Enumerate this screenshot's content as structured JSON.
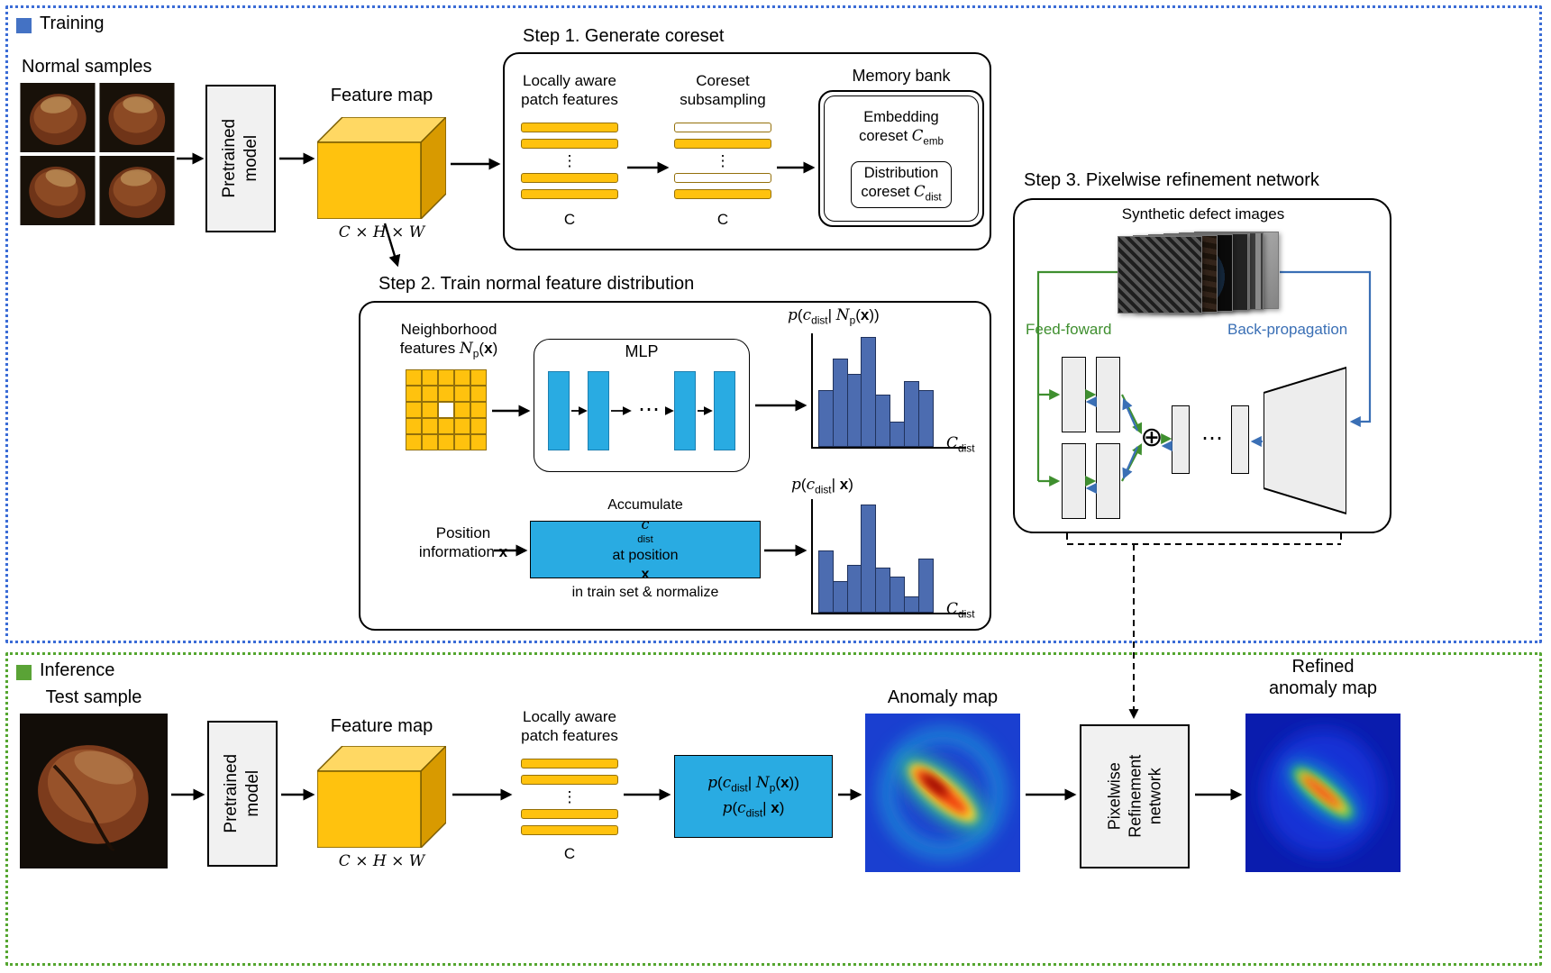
{
  "palette": {
    "training_border": "#3b6cd6",
    "inference_border": "#55a630",
    "training_swatch": "#4472C4",
    "inference_swatch": "#5aa336",
    "gold": "#FFC20E",
    "cyan_box": "#29ABE2",
    "hist_bar": "#4c6cb0",
    "feed_forward_green": "#3f8f2f",
    "backprop_blue": "#3a6fb5"
  },
  "chars": {
    "vdots": "⋮",
    "hdots": "⋯",
    "oplus": "⊕"
  },
  "training": {
    "legend_label": "Training",
    "normal_samples_label": "Normal samples",
    "pretrained_model_label": "Pretrained\nmodel",
    "feature_map_label": "Feature map",
    "feature_map_dims": "C × H × W",
    "step1": {
      "title": "Step 1. Generate coreset",
      "patch_features_label": "Locally aware\npatch features",
      "patch_bars": [
        "filled",
        "filled",
        "dots",
        "filled",
        "filled"
      ],
      "patch_c_label": "C",
      "coreset_label": "Coreset\nsubsampling",
      "coreset_bars": [
        "outline",
        "filled",
        "dots",
        "outline",
        "filled"
      ],
      "coreset_c_label": "C",
      "memory_bank_title": "Memory bank",
      "embedding_segs": [
        {
          "t": "Embedding\ncoreset "
        },
        {
          "t": "C",
          "c": "m"
        },
        {
          "s": "emb"
        }
      ],
      "distribution_segs": [
        {
          "t": "Distribution\ncoreset "
        },
        {
          "t": "C",
          "c": "m"
        },
        {
          "s": "dist"
        }
      ]
    },
    "step2": {
      "title": "Step 2. Train normal feature distribution",
      "neighborhood_segs": [
        {
          "t": "Neighborhood\nfeatures "
        },
        {
          "t": "N",
          "c": "m"
        },
        {
          "s": "p"
        },
        {
          "t": "("
        },
        {
          "t": "x",
          "c": "b"
        },
        {
          "t": ")"
        }
      ],
      "grid": {
        "rows": 5,
        "cols": 5
      },
      "mlp_label": "MLP",
      "hist1_title_segs": [
        {
          "t": "p",
          "c": "m"
        },
        {
          "t": "("
        },
        {
          "t": "c",
          "c": "m"
        },
        {
          "s": "dist"
        },
        {
          "t": "| "
        },
        {
          "t": "N",
          "c": "m"
        },
        {
          "s": "p"
        },
        {
          "t": "("
        },
        {
          "t": "x",
          "c": "b"
        },
        {
          "t": "))"
        }
      ],
      "hist1_values": [
        0.5,
        0.78,
        0.64,
        0.97,
        0.46,
        0.22,
        0.58,
        0.5
      ],
      "hist_axis_segs": [
        {
          "t": "C",
          "c": "m"
        },
        {
          "s": "dist"
        }
      ],
      "position_segs": [
        {
          "t": "Position\ninformation "
        },
        {
          "t": "x",
          "c": "b"
        }
      ],
      "accumulate_segs": [
        {
          "t": "Accumulate "
        },
        {
          "t": "c",
          "c": "m"
        },
        {
          "s": "dist"
        },
        {
          "t": " at position\n"
        },
        {
          "t": "x",
          "c": "b"
        },
        {
          "t": " in train set & normalize"
        }
      ],
      "hist2_title_segs": [
        {
          "t": "p",
          "c": "m"
        },
        {
          "t": "("
        },
        {
          "t": "c",
          "c": "m"
        },
        {
          "s": "dist"
        },
        {
          "t": "| "
        },
        {
          "t": "x",
          "c": "b"
        },
        {
          "t": ")"
        }
      ],
      "hist2_values": [
        0.55,
        0.28,
        0.42,
        0.95,
        0.4,
        0.32,
        0.14,
        0.48
      ]
    },
    "step3": {
      "title": "Step 3. Pixelwise refinement network",
      "synthetic_label": "Synthetic defect images",
      "stack": [
        "mesh",
        "wood",
        "lens",
        "crack",
        "stripe",
        "plain"
      ],
      "feed_forward_label": "Feed-foward",
      "backprop_label": "Back-propagation"
    }
  },
  "inference": {
    "legend_label": "Inference",
    "test_sample_label": "Test sample",
    "pretrained_model_label": "Pretrained\nmodel",
    "feature_map_label": "Feature map",
    "feature_map_dims": "C × H × W",
    "patch_features_label": "Locally aware\npatch features",
    "patch_bars": [
      "filled",
      "filled",
      "dots",
      "filled",
      "filled"
    ],
    "patch_c_label": "C",
    "prob_line1_segs": [
      {
        "t": "p",
        "c": "m"
      },
      {
        "t": "("
      },
      {
        "t": "c",
        "c": "m"
      },
      {
        "s": "dist"
      },
      {
        "t": "| "
      },
      {
        "t": "N",
        "c": "m"
      },
      {
        "s": "p"
      },
      {
        "t": "("
      },
      {
        "t": "x",
        "c": "b"
      },
      {
        "t": "))"
      }
    ],
    "prob_line2_segs": [
      {
        "t": "p",
        "c": "m"
      },
      {
        "t": "("
      },
      {
        "t": "c",
        "c": "m"
      },
      {
        "s": "dist"
      },
      {
        "t": "| "
      },
      {
        "t": "x",
        "c": "b"
      },
      {
        "t": ")"
      }
    ],
    "anomaly_map_label": "Anomaly map",
    "refinement_label": "Pixelwise\nRefinement\nnetwork",
    "refined_label": "Refined\nanomaly map"
  }
}
